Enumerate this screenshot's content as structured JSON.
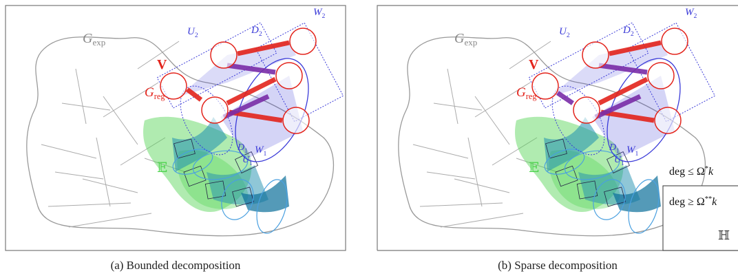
{
  "panels": [
    {
      "caption": "(a) Bounded decomposition",
      "labels": [
        {
          "base": "G",
          "sub": "exp"
        },
        {
          "base": "V"
        },
        {
          "base": "G",
          "sub": "reg"
        },
        {
          "base": "U",
          "sub": "2"
        },
        {
          "base": "D",
          "sub": "2"
        },
        {
          "base": "W",
          "sub": "2"
        },
        {
          "base": "D",
          "sub": "1"
        },
        {
          "base": "W",
          "sub": "1"
        },
        {
          "base": "U",
          "sub": "1"
        },
        {
          "base": "𝔼"
        }
      ]
    },
    {
      "caption": "(b) Sparse decomposition",
      "labels": [
        {
          "base": "G",
          "sub": "exp"
        },
        {
          "base": "V"
        },
        {
          "base": "G",
          "sub": "reg"
        },
        {
          "base": "U",
          "sub": "2"
        },
        {
          "base": "D",
          "sub": "2"
        },
        {
          "base": "W",
          "sub": "2"
        },
        {
          "base": "D",
          "sub": "1"
        },
        {
          "base": "W",
          "sub": "1"
        },
        {
          "base": "U",
          "sub": "1"
        },
        {
          "base": "𝔼"
        },
        {
          "base": "deg ≤ Ω",
          "sup": "*",
          "after": "k"
        },
        {
          "base": "deg ≥ Ω",
          "sup": "**",
          "after": "k"
        },
        {
          "base": "ℍ"
        }
      ]
    }
  ]
}
